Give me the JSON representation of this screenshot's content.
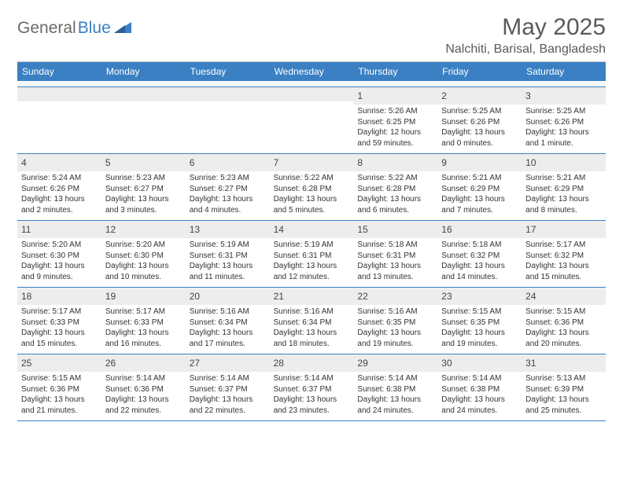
{
  "logo": {
    "part1": "General",
    "part2": "Blue"
  },
  "title": "May 2025",
  "location": "Nalchiti, Barisal, Bangladesh",
  "colors": {
    "header_bg": "#3a80c3",
    "daynum_bg": "#ededed",
    "border": "#3a80c3",
    "text": "#333333",
    "title": "#5a5a5a"
  },
  "weekdays": [
    "Sunday",
    "Monday",
    "Tuesday",
    "Wednesday",
    "Thursday",
    "Friday",
    "Saturday"
  ],
  "weeks": [
    [
      {
        "empty": true
      },
      {
        "empty": true
      },
      {
        "empty": true
      },
      {
        "empty": true
      },
      {
        "num": "1",
        "sunrise": "Sunrise: 5:26 AM",
        "sunset": "Sunset: 6:25 PM",
        "daylight": "Daylight: 12 hours and 59 minutes."
      },
      {
        "num": "2",
        "sunrise": "Sunrise: 5:25 AM",
        "sunset": "Sunset: 6:26 PM",
        "daylight": "Daylight: 13 hours and 0 minutes."
      },
      {
        "num": "3",
        "sunrise": "Sunrise: 5:25 AM",
        "sunset": "Sunset: 6:26 PM",
        "daylight": "Daylight: 13 hours and 1 minute."
      }
    ],
    [
      {
        "num": "4",
        "sunrise": "Sunrise: 5:24 AM",
        "sunset": "Sunset: 6:26 PM",
        "daylight": "Daylight: 13 hours and 2 minutes."
      },
      {
        "num": "5",
        "sunrise": "Sunrise: 5:23 AM",
        "sunset": "Sunset: 6:27 PM",
        "daylight": "Daylight: 13 hours and 3 minutes."
      },
      {
        "num": "6",
        "sunrise": "Sunrise: 5:23 AM",
        "sunset": "Sunset: 6:27 PM",
        "daylight": "Daylight: 13 hours and 4 minutes."
      },
      {
        "num": "7",
        "sunrise": "Sunrise: 5:22 AM",
        "sunset": "Sunset: 6:28 PM",
        "daylight": "Daylight: 13 hours and 5 minutes."
      },
      {
        "num": "8",
        "sunrise": "Sunrise: 5:22 AM",
        "sunset": "Sunset: 6:28 PM",
        "daylight": "Daylight: 13 hours and 6 minutes."
      },
      {
        "num": "9",
        "sunrise": "Sunrise: 5:21 AM",
        "sunset": "Sunset: 6:29 PM",
        "daylight": "Daylight: 13 hours and 7 minutes."
      },
      {
        "num": "10",
        "sunrise": "Sunrise: 5:21 AM",
        "sunset": "Sunset: 6:29 PM",
        "daylight": "Daylight: 13 hours and 8 minutes."
      }
    ],
    [
      {
        "num": "11",
        "sunrise": "Sunrise: 5:20 AM",
        "sunset": "Sunset: 6:30 PM",
        "daylight": "Daylight: 13 hours and 9 minutes."
      },
      {
        "num": "12",
        "sunrise": "Sunrise: 5:20 AM",
        "sunset": "Sunset: 6:30 PM",
        "daylight": "Daylight: 13 hours and 10 minutes."
      },
      {
        "num": "13",
        "sunrise": "Sunrise: 5:19 AM",
        "sunset": "Sunset: 6:31 PM",
        "daylight": "Daylight: 13 hours and 11 minutes."
      },
      {
        "num": "14",
        "sunrise": "Sunrise: 5:19 AM",
        "sunset": "Sunset: 6:31 PM",
        "daylight": "Daylight: 13 hours and 12 minutes."
      },
      {
        "num": "15",
        "sunrise": "Sunrise: 5:18 AM",
        "sunset": "Sunset: 6:31 PM",
        "daylight": "Daylight: 13 hours and 13 minutes."
      },
      {
        "num": "16",
        "sunrise": "Sunrise: 5:18 AM",
        "sunset": "Sunset: 6:32 PM",
        "daylight": "Daylight: 13 hours and 14 minutes."
      },
      {
        "num": "17",
        "sunrise": "Sunrise: 5:17 AM",
        "sunset": "Sunset: 6:32 PM",
        "daylight": "Daylight: 13 hours and 15 minutes."
      }
    ],
    [
      {
        "num": "18",
        "sunrise": "Sunrise: 5:17 AM",
        "sunset": "Sunset: 6:33 PM",
        "daylight": "Daylight: 13 hours and 15 minutes."
      },
      {
        "num": "19",
        "sunrise": "Sunrise: 5:17 AM",
        "sunset": "Sunset: 6:33 PM",
        "daylight": "Daylight: 13 hours and 16 minutes."
      },
      {
        "num": "20",
        "sunrise": "Sunrise: 5:16 AM",
        "sunset": "Sunset: 6:34 PM",
        "daylight": "Daylight: 13 hours and 17 minutes."
      },
      {
        "num": "21",
        "sunrise": "Sunrise: 5:16 AM",
        "sunset": "Sunset: 6:34 PM",
        "daylight": "Daylight: 13 hours and 18 minutes."
      },
      {
        "num": "22",
        "sunrise": "Sunrise: 5:16 AM",
        "sunset": "Sunset: 6:35 PM",
        "daylight": "Daylight: 13 hours and 19 minutes."
      },
      {
        "num": "23",
        "sunrise": "Sunrise: 5:15 AM",
        "sunset": "Sunset: 6:35 PM",
        "daylight": "Daylight: 13 hours and 19 minutes."
      },
      {
        "num": "24",
        "sunrise": "Sunrise: 5:15 AM",
        "sunset": "Sunset: 6:36 PM",
        "daylight": "Daylight: 13 hours and 20 minutes."
      }
    ],
    [
      {
        "num": "25",
        "sunrise": "Sunrise: 5:15 AM",
        "sunset": "Sunset: 6:36 PM",
        "daylight": "Daylight: 13 hours and 21 minutes."
      },
      {
        "num": "26",
        "sunrise": "Sunrise: 5:14 AM",
        "sunset": "Sunset: 6:36 PM",
        "daylight": "Daylight: 13 hours and 22 minutes."
      },
      {
        "num": "27",
        "sunrise": "Sunrise: 5:14 AM",
        "sunset": "Sunset: 6:37 PM",
        "daylight": "Daylight: 13 hours and 22 minutes."
      },
      {
        "num": "28",
        "sunrise": "Sunrise: 5:14 AM",
        "sunset": "Sunset: 6:37 PM",
        "daylight": "Daylight: 13 hours and 23 minutes."
      },
      {
        "num": "29",
        "sunrise": "Sunrise: 5:14 AM",
        "sunset": "Sunset: 6:38 PM",
        "daylight": "Daylight: 13 hours and 24 minutes."
      },
      {
        "num": "30",
        "sunrise": "Sunrise: 5:14 AM",
        "sunset": "Sunset: 6:38 PM",
        "daylight": "Daylight: 13 hours and 24 minutes."
      },
      {
        "num": "31",
        "sunrise": "Sunrise: 5:13 AM",
        "sunset": "Sunset: 6:39 PM",
        "daylight": "Daylight: 13 hours and 25 minutes."
      }
    ]
  ]
}
